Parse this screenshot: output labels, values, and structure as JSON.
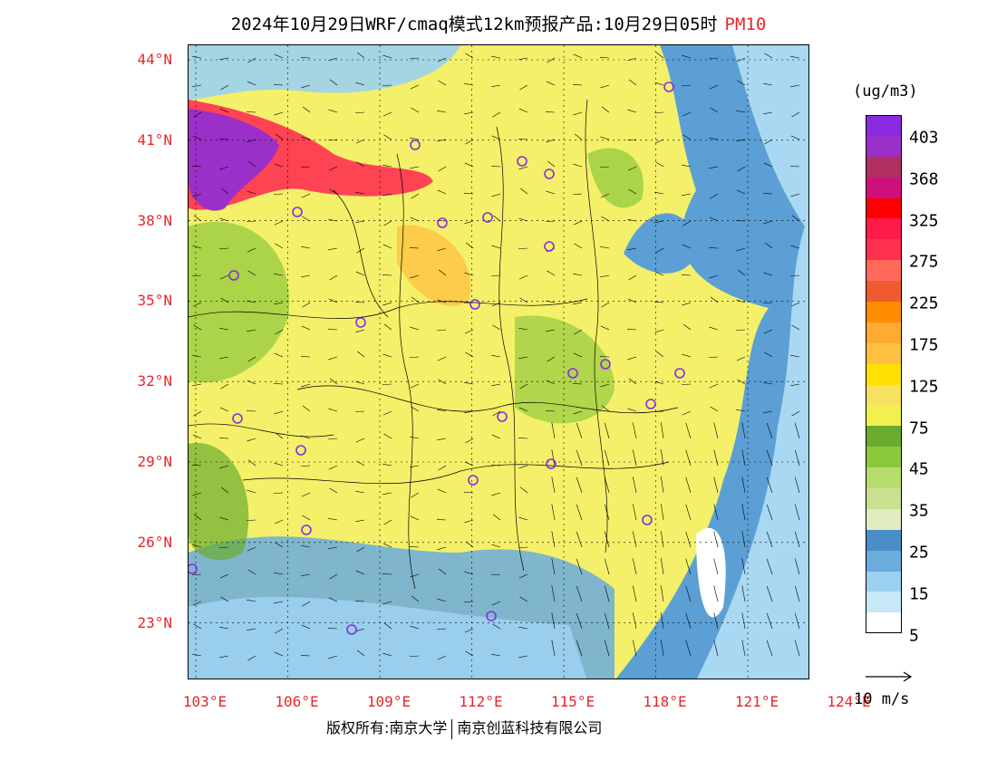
{
  "title": {
    "main": "2024年10月29日WRF/cmaq模式12km预报产品:10月29日05时",
    "pollutant": "PM10"
  },
  "map": {
    "lat_labels": [
      "44°N",
      "41°N",
      "38°N",
      "35°N",
      "32°N",
      "29°N",
      "26°N",
      "23°N"
    ],
    "lon_labels": [
      "103°E",
      "106°E",
      "109°E",
      "112°E",
      "115°E",
      "118°E",
      "121°E",
      "124°E"
    ],
    "background_color": "#f4f06a",
    "coastal_color": "#5b9fd4",
    "ocean_color": "#a9d8f2",
    "station_marker_color": "#8a2be2",
    "vector_color": "#000000"
  },
  "colorbar": {
    "units": "(ug/m3)",
    "colors": [
      "#8a2be2",
      "#9b30c8",
      "#b03060",
      "#d0107a",
      "#ff0000",
      "#ff1a4a",
      "#ff3050",
      "#ff6a5a",
      "#f05a30",
      "#ff8c00",
      "#ffaa30",
      "#ffc040",
      "#ffe000",
      "#f8e060",
      "#f0f050",
      "#6aac30",
      "#8cc83c",
      "#b8dc6c",
      "#c8e090",
      "#e0ecc0",
      "#4a8ec8",
      "#6aacdc",
      "#9cd0f0",
      "#c8e8f8",
      "#ffffff"
    ],
    "tick_labels": [
      "403",
      "368",
      "325",
      "275",
      "225",
      "175",
      "125",
      "75",
      "45",
      "35",
      "25",
      "15",
      "5"
    ]
  },
  "reference_vector": {
    "label": "10 m/s"
  },
  "footer": {
    "copyright_left": "版权所有:南京大学",
    "copyright_right": "南京创蓝科技有限公司"
  }
}
